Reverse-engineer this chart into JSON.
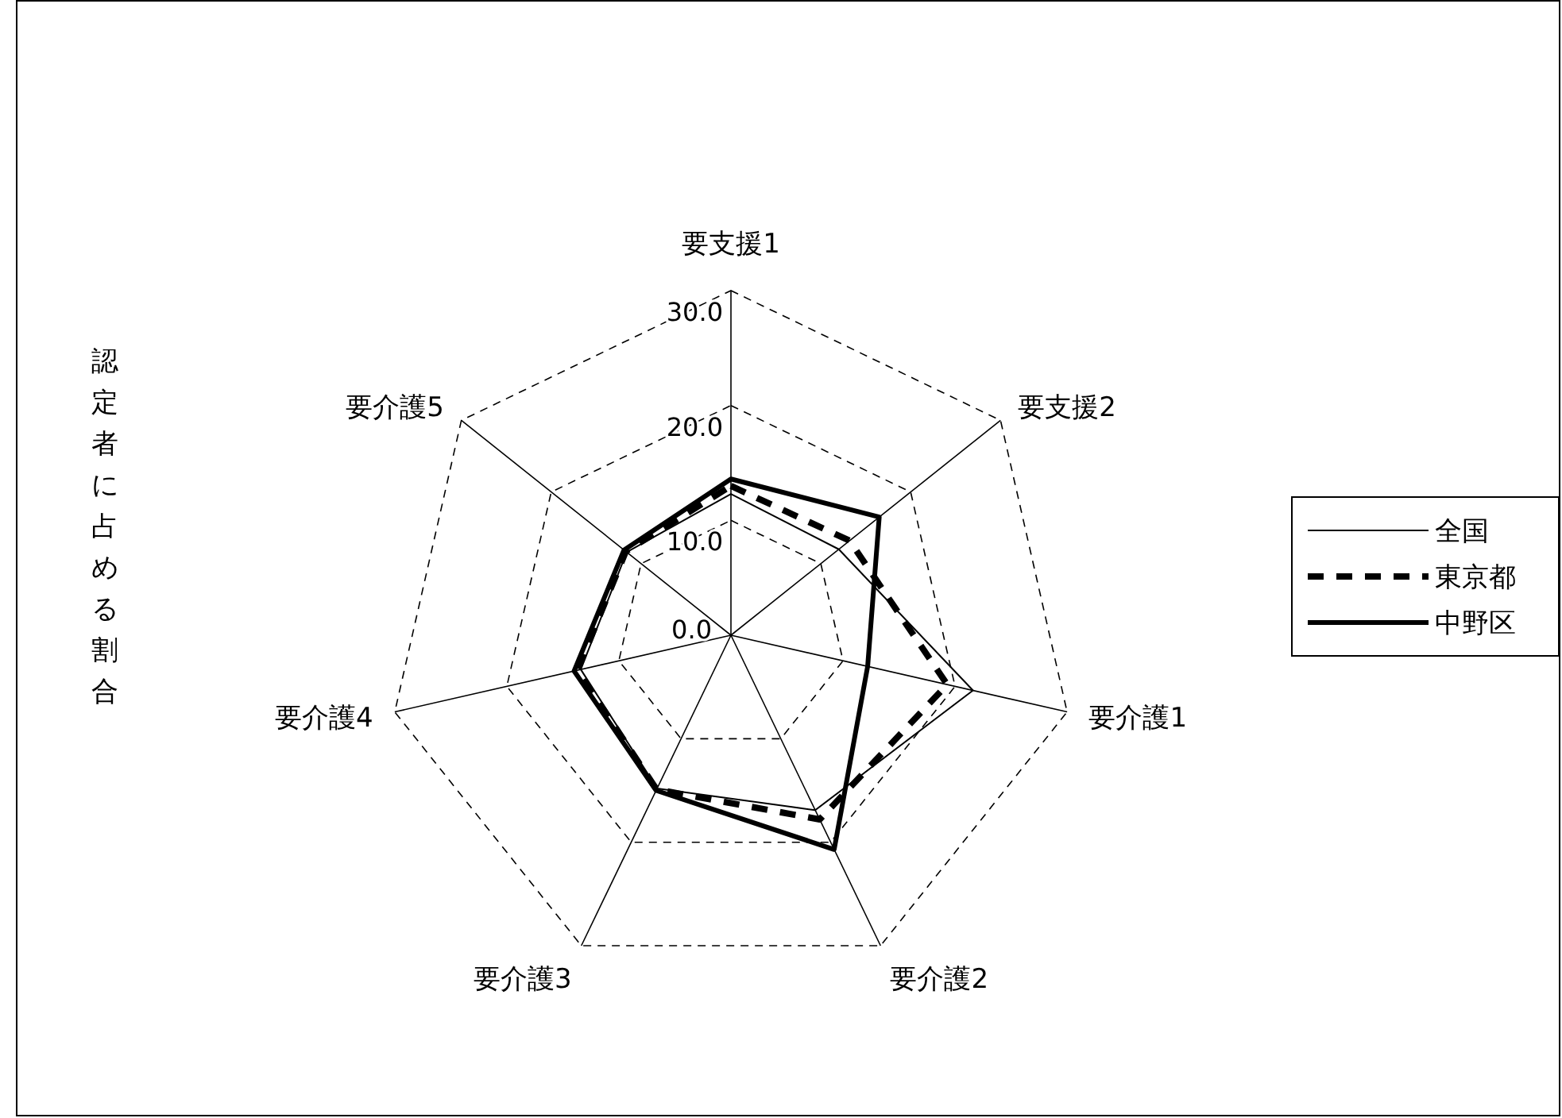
{
  "chart_data": {
    "type": "radar",
    "ylabel": "認定者に占める割合",
    "categories": [
      "要支援1",
      "要支援2",
      "要介護1",
      "要介護2",
      "要介護3",
      "要介護4",
      "要介護5"
    ],
    "series": [
      {
        "name": "全国",
        "color": "#000000",
        "line_style": "solid",
        "values": [
          12.3,
          12.0,
          21.6,
          16.9,
          14.8,
          13.4,
          11.6
        ]
      },
      {
        "name": "東京都",
        "color": "#000000",
        "line_style": "dashed",
        "values": [
          13.0,
          13.2,
          19.3,
          17.8,
          14.9,
          13.7,
          11.7
        ]
      },
      {
        "name": "中野区",
        "color": "#000000",
        "line_style": "solid",
        "values": [
          13.6,
          16.5,
          12.2,
          20.7,
          15.0,
          14.0,
          11.9
        ]
      }
    ],
    "ylim": [
      0,
      30
    ],
    "yticks": [
      {
        "value": 0,
        "label": "0.0"
      },
      {
        "value": 10,
        "label": "10.0"
      },
      {
        "value": 20,
        "label": "20.0"
      },
      {
        "value": 30,
        "label": "30.0"
      }
    ],
    "grid": true,
    "legend": "right"
  }
}
